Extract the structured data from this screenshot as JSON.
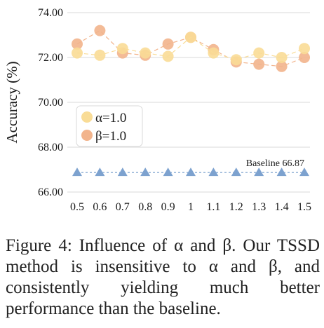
{
  "chart_data": {
    "type": "line",
    "xlabel": "",
    "ylabel": "Accuracy (%)",
    "categories": [
      "0.5",
      "0.6",
      "0.7",
      "0.8",
      "0.9",
      "1",
      "1.1",
      "1.2",
      "1.3",
      "1.4",
      "1.5"
    ],
    "ylim": [
      66.0,
      74.0
    ],
    "yticks": [
      "66.00",
      "68.00",
      "70.00",
      "72.00",
      "74.00"
    ],
    "yticks_values": [
      66,
      68,
      70,
      72,
      74
    ],
    "grid": true,
    "legend_position": "left",
    "series": [
      {
        "name": "α=1.0",
        "color": "#f9dc96",
        "marker": "circle",
        "values": [
          72.2,
          72.1,
          72.4,
          72.2,
          72.05,
          72.9,
          72.2,
          71.9,
          72.2,
          72.0,
          72.4
        ]
      },
      {
        "name": "β=1.0",
        "color": "#f2b48c",
        "marker": "circle",
        "values": [
          72.6,
          73.2,
          72.2,
          72.1,
          72.6,
          72.9,
          72.35,
          71.8,
          71.7,
          71.6,
          72.0
        ]
      },
      {
        "name": "",
        "color": "#7da2cf",
        "marker": "triangle",
        "values": [
          66.87,
          66.87,
          66.87,
          66.87,
          66.87,
          66.87,
          66.87,
          66.87,
          66.87,
          66.87,
          66.87
        ]
      }
    ],
    "baseline_label": "Baseline 66.87"
  },
  "caption": "Figure 4: Influence of α and β. Our TSSD method is insensitive to α and β, and consistently yielding much better performance than the baseline."
}
